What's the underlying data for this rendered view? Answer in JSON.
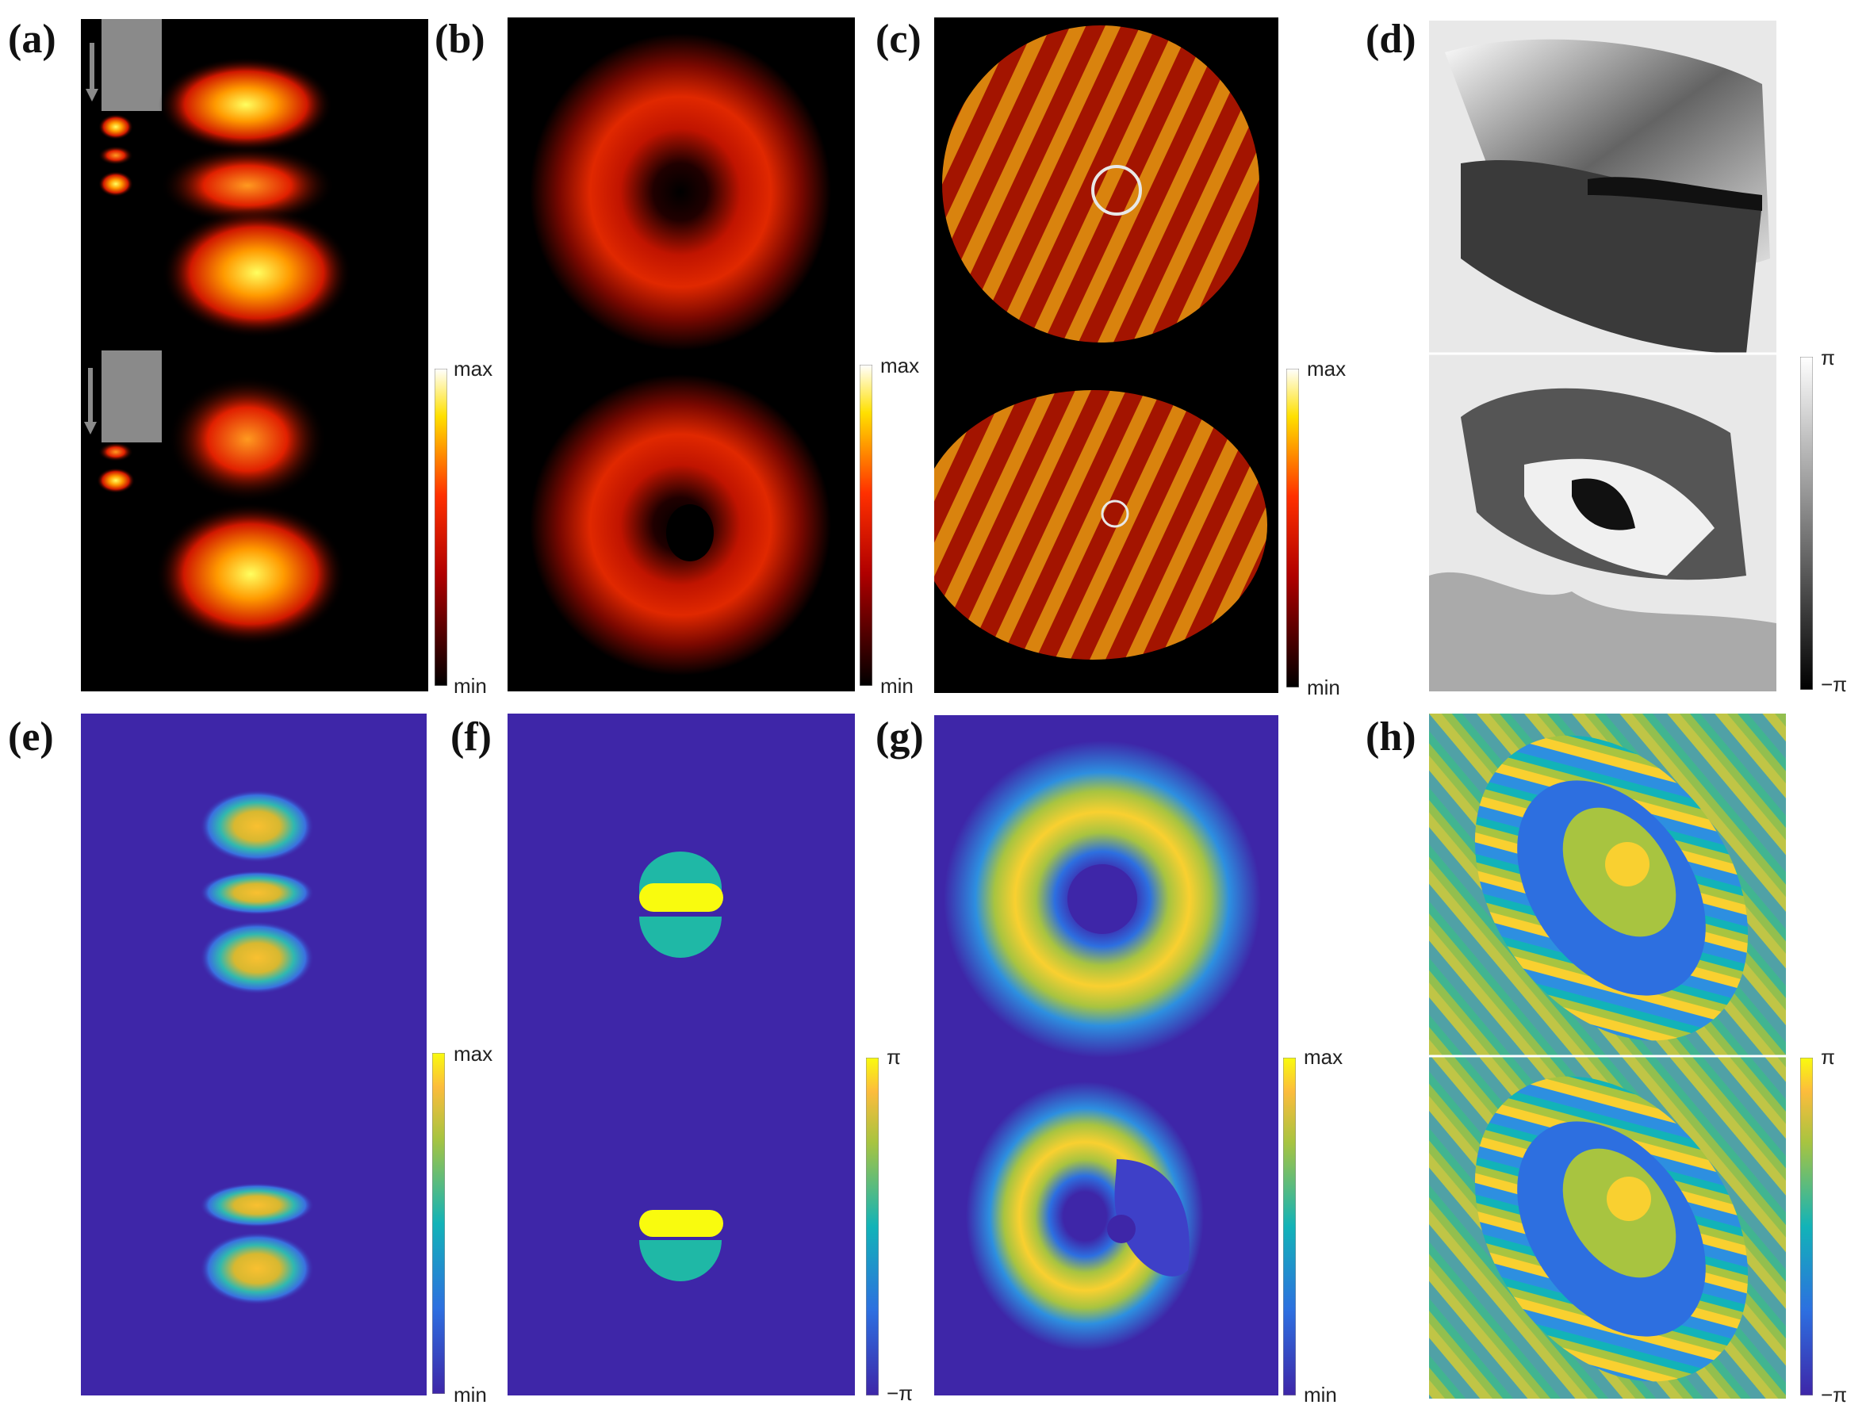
{
  "panels": {
    "a": {
      "label": "(a)",
      "colorbar": {
        "max": "max",
        "min": "min"
      }
    },
    "b": {
      "label": "(b)",
      "colorbar": {
        "max": "max",
        "min": "min"
      }
    },
    "c": {
      "label": "(c)",
      "colorbar": {
        "max": "max",
        "min": "min"
      }
    },
    "d": {
      "label": "(d)",
      "colorbar": {
        "max": "π",
        "min": "−π"
      }
    },
    "e": {
      "label": "(e)",
      "colorbar": {
        "max": "max",
        "min": "min"
      }
    },
    "f": {
      "label": "(f)",
      "colorbar": {
        "max": "π",
        "min": "−π"
      }
    },
    "g": {
      "label": "(g)",
      "colorbar": {
        "max": "max",
        "min": "min"
      }
    },
    "h": {
      "label": "(h)",
      "colorbar": {
        "max": "π",
        "min": "−π"
      }
    }
  },
  "colors": {
    "hot_bg": "#000000",
    "parula_bg": "#3e26a8",
    "parula_yellow": "#f9fb0e",
    "parula_teal": "#1fb8a6",
    "marker_gray": "#8a8a8a"
  }
}
